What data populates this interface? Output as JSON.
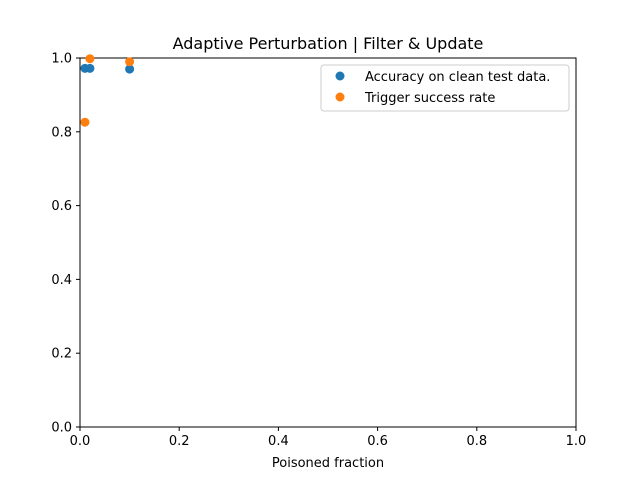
{
  "chart_data": {
    "type": "scatter",
    "title": "Adaptive Perturbation | Filter & Update",
    "xlabel": "Poisoned fraction",
    "ylabel": "",
    "xlim": [
      0.0,
      1.0
    ],
    "ylim": [
      0.0,
      1.0
    ],
    "xticks": [
      "0.0",
      "0.2",
      "0.4",
      "0.6",
      "0.8",
      "1.0"
    ],
    "yticks": [
      "0.0",
      "0.2",
      "0.4",
      "0.6",
      "0.8",
      "1.0"
    ],
    "grid": false,
    "legend_position": "top-right",
    "series": [
      {
        "name": "Accuracy on clean test data.",
        "color": "#1f77b4",
        "points": [
          {
            "x": 0.01,
            "y": 0.972
          },
          {
            "x": 0.02,
            "y": 0.972
          },
          {
            "x": 0.1,
            "y": 0.97
          }
        ]
      },
      {
        "name": "Trigger success rate",
        "color": "#ff7f0e",
        "points": [
          {
            "x": 0.01,
            "y": 0.826
          },
          {
            "x": 0.02,
            "y": 0.998
          },
          {
            "x": 0.1,
            "y": 0.99
          }
        ]
      }
    ]
  }
}
